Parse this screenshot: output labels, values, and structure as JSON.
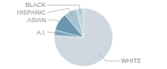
{
  "chart_data": {
    "type": "pie",
    "categories": [
      "WHITE",
      "A.I.",
      "ASIAN",
      "HISPANIC",
      "BLACK"
    ],
    "values": [
      76,
      3,
      10,
      7,
      4
    ],
    "colors": [
      "#cfd8e0",
      "#7fa8be",
      "#6a97af",
      "#a8c4d0",
      "#c2d5dd"
    ]
  }
}
